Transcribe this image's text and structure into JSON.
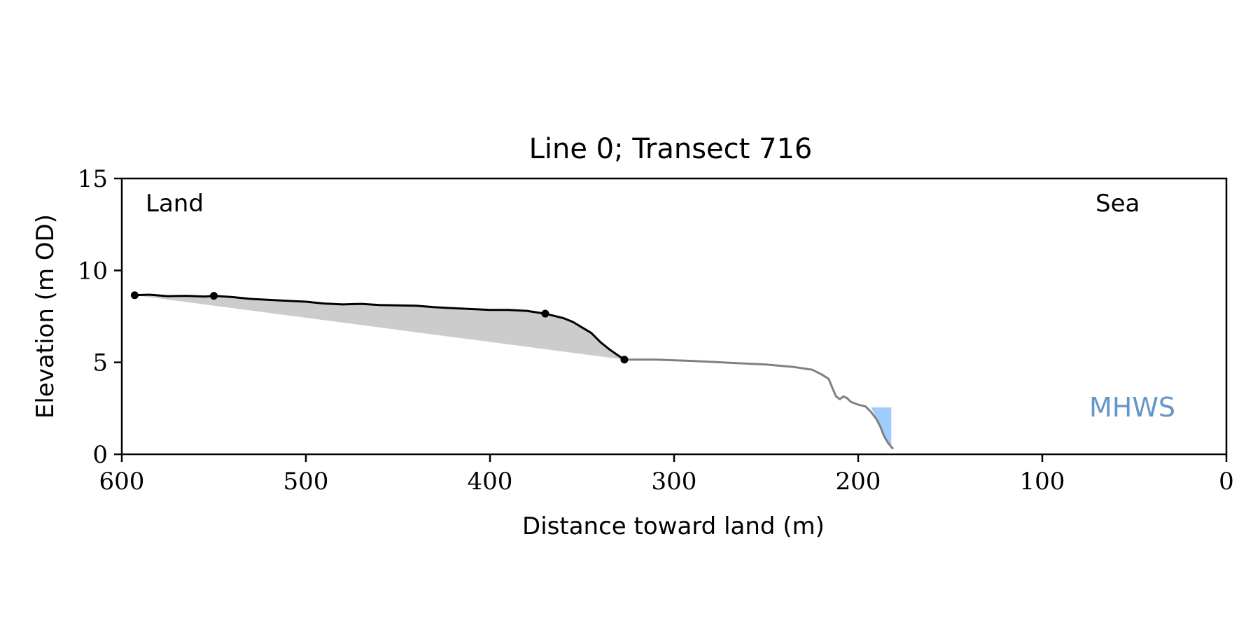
{
  "chart_data": {
    "type": "line",
    "title": "Line 0; Transect 716",
    "xlabel": "Distance toward land (m)",
    "ylabel": "Elevation (m OD)",
    "xlim": [
      600,
      0
    ],
    "ylim": [
      0,
      15
    ],
    "xticks": [
      "600",
      "500",
      "400",
      "300",
      "200",
      "100",
      "0"
    ],
    "yticks": [
      "0",
      "5",
      "10",
      "15"
    ],
    "grid": false,
    "annotations": {
      "land": "Land",
      "sea": "Sea",
      "mhws": "MHWS"
    },
    "colors": {
      "profile_cliff": "#000000",
      "profile_beach": "#808080",
      "fill_area": "#cccccc",
      "water": "#9fcdfb",
      "mhws_text": "#6497c6"
    },
    "mhws_level": 2.55,
    "series": [
      {
        "x": [
          593,
          585,
          575,
          565,
          555,
          550,
          540,
          530,
          520,
          510,
          500,
          490,
          480,
          470,
          460,
          450,
          440,
          430,
          420,
          410,
          400,
          390,
          380,
          370,
          360,
          355,
          350,
          345,
          340,
          335,
          330,
          327
        ],
        "y": [
          8.65,
          8.68,
          8.6,
          8.62,
          8.58,
          8.62,
          8.55,
          8.45,
          8.4,
          8.35,
          8.3,
          8.2,
          8.15,
          8.18,
          8.12,
          8.1,
          8.08,
          8.0,
          7.95,
          7.9,
          7.85,
          7.85,
          7.8,
          7.65,
          7.4,
          7.2,
          6.9,
          6.6,
          6.1,
          5.7,
          5.35,
          5.15
        ]
      },
      {
        "x": [
          327,
          310,
          290,
          270,
          250,
          235,
          225,
          220,
          216,
          214,
          212,
          210,
          208,
          206,
          204,
          200,
          196,
          193,
          190,
          188,
          186,
          184,
          182,
          181
        ],
        "y": [
          5.15,
          5.15,
          5.08,
          4.98,
          4.88,
          4.75,
          4.6,
          4.35,
          4.1,
          3.6,
          3.15,
          3.0,
          3.15,
          3.05,
          2.85,
          2.7,
          2.6,
          2.3,
          1.9,
          1.5,
          1.0,
          0.65,
          0.4,
          0.3
        ]
      }
    ],
    "fill_baseline": {
      "x": [
        593,
        327
      ],
      "y": [
        8.65,
        5.15
      ]
    },
    "markers": {
      "x": [
        593,
        550,
        370,
        327
      ],
      "y": [
        8.65,
        8.62,
        7.65,
        5.15
      ]
    },
    "water_polygon": {
      "x": [
        193,
        182,
        182
      ],
      "y": [
        2.55,
        2.55,
        0.3
      ]
    }
  }
}
